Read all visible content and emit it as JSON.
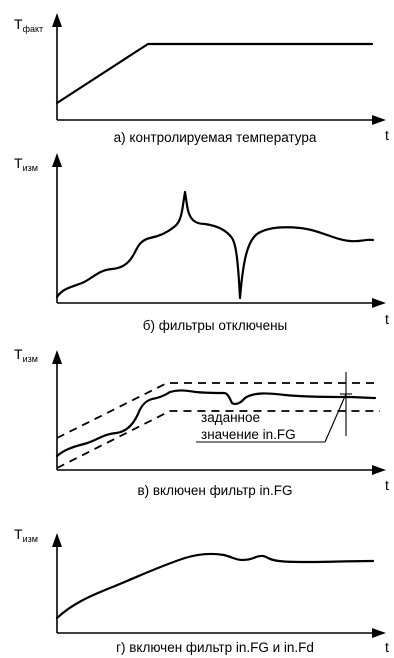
{
  "panels": [
    {
      "y_symbol": "T",
      "y_subscript": "факт",
      "x_symbol": "t",
      "caption": "а) контролируемая температура"
    },
    {
      "y_symbol": "T",
      "y_subscript": "изм",
      "x_symbol": "t",
      "caption": "б) фильтры отключены"
    },
    {
      "y_symbol": "T",
      "y_subscript": "изм",
      "x_symbol": "t",
      "caption": "в) включен фильтр in.FG",
      "annotation": {
        "line1": "заданное",
        "line2": "значение in.FG"
      }
    },
    {
      "y_symbol": "T",
      "y_subscript": "изм",
      "x_symbol": "t",
      "caption": "г) включен фильтр in.FG и in.Fd"
    }
  ]
}
